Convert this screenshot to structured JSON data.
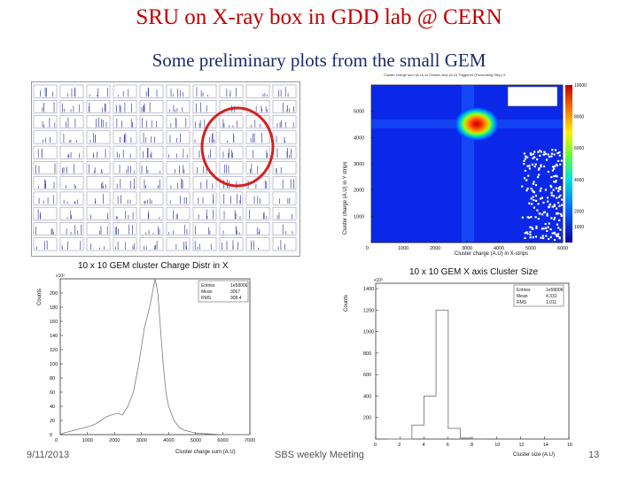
{
  "slide": {
    "title": "SRU on X-ray box in GDD lab @ CERN",
    "subtitle": "Some preliminary plots from the small GEM",
    "footer_date": "9/11/2013",
    "footer_center": "SBS weekly Meeting",
    "page_number": "13",
    "highlight_color": "#d42020",
    "title_color": "#c00000",
    "subtitle_color": "#1a2a6e"
  },
  "panels": {
    "grid_thumbnails": {
      "rows": 11,
      "cols": 10
    },
    "charge_distr": {
      "title": "10 x 10 GEM cluster Charge Distr in X",
      "xlabel": "Cluster charge sum (A.U)",
      "ylabel": "Counts",
      "exponent": "x10³",
      "stats": [
        {
          "label": "Entries",
          "value": "1e58006"
        },
        {
          "label": "Mean",
          "value": "3067"
        },
        {
          "label": "RMS",
          "value": "908.4"
        }
      ]
    },
    "heatmap": {
      "header": "Cluster charge sum (A.U) vs Cluster strip (A.U) Triggered (Fluctuating Strip) X",
      "xlabel": "Cluster charge (A.U) in X-strips",
      "ylabel": "Cluster charge (A.U) in Y strips"
    },
    "cluster_size": {
      "title": "10 x 10 GEM X axis Cluster Size",
      "xlabel": "Cluster size (A.U)",
      "ylabel": "Counts",
      "exponent": "x10³",
      "stats": [
        {
          "label": "Entries",
          "value": "1e58006"
        },
        {
          "label": "Mean",
          "value": "4.331"
        },
        {
          "label": "RMS",
          "value": "1.011"
        }
      ]
    }
  },
  "chart_data": [
    {
      "type": "line",
      "title": "10 x 10 GEM cluster Charge Distr in X",
      "xlabel": "Cluster charge sum (A.U)",
      "ylabel": "Counts",
      "xlim": [
        0,
        7000
      ],
      "ylim": [
        0,
        220
      ],
      "xticks": [
        0,
        1000,
        2000,
        3000,
        4000,
        5000,
        6000,
        7000
      ],
      "yticks": [
        0,
        20,
        40,
        60,
        80,
        100,
        120,
        140,
        160,
        180,
        200
      ],
      "y_unit_multiplier": "x10³",
      "x": [
        0,
        100,
        300,
        500,
        700,
        900,
        1100,
        1300,
        1500,
        1700,
        1900,
        2100,
        2300,
        2500,
        2700,
        2900,
        3100,
        3300,
        3500,
        3600,
        3700,
        3800,
        3900,
        4000,
        4200,
        4400,
        4600,
        4800,
        5000,
        5500,
        6000,
        7000
      ],
      "y": [
        0,
        2,
        4,
        6,
        8,
        10,
        12,
        15,
        20,
        25,
        28,
        30,
        28,
        40,
        60,
        100,
        150,
        180,
        220,
        200,
        150,
        100,
        60,
        40,
        20,
        10,
        6,
        4,
        2,
        1,
        0,
        0
      ]
    },
    {
      "type": "heatmap",
      "xlabel": "Cluster charge (A.U) in X-strips",
      "ylabel": "Cluster charge (A.U) in Y strips",
      "xlim": [
        0,
        6000
      ],
      "ylim": [
        0,
        6000
      ],
      "xticks": [
        0,
        1000,
        2000,
        3000,
        4000,
        5000,
        6000
      ],
      "yticks": [
        1000,
        2000,
        3000,
        4000,
        5000
      ],
      "zticks": [
        1000,
        2000,
        4000,
        6000,
        8000,
        10000
      ],
      "hotspot": {
        "x": 3300,
        "y": 4550
      }
    },
    {
      "type": "bar",
      "title": "10 x 10 GEM X axis Cluster Size",
      "xlabel": "Cluster size (A.U)",
      "ylabel": "Counts",
      "xlim": [
        0,
        16
      ],
      "ylim": [
        0,
        1450
      ],
      "xticks": [
        0,
        2,
        4,
        6,
        8,
        10,
        12,
        14,
        16
      ],
      "yticks": [
        200,
        400,
        600,
        800,
        1000,
        1200,
        1400
      ],
      "y_unit_multiplier": "x10³",
      "categories": [
        1,
        2,
        3,
        4,
        5,
        6,
        7,
        8
      ],
      "values": [
        0,
        0,
        130,
        400,
        1200,
        100,
        10,
        2
      ]
    }
  ]
}
